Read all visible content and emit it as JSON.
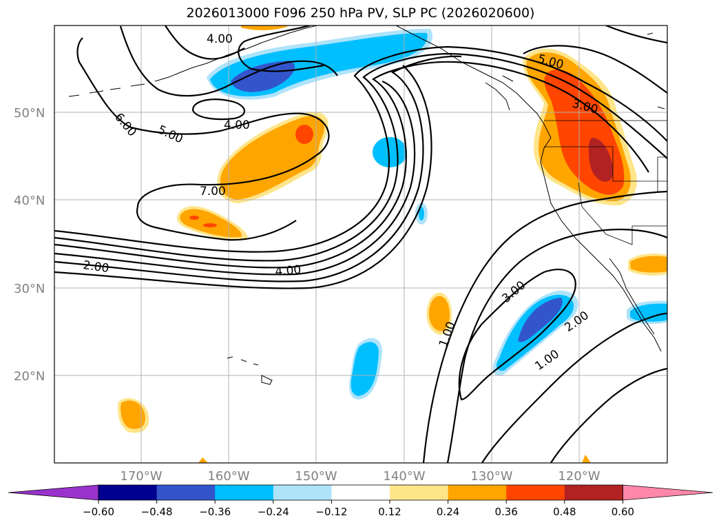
{
  "title": "2026013000 F096 250 hPa PV, SLP PC (2026020600)",
  "lat_labels": [
    "50°N",
    "40°N",
    "30°N",
    "20°N"
  ],
  "lon_labels": [
    "170°W",
    "160°W",
    "150°W",
    "140°W",
    "130°W",
    "120°W"
  ],
  "contour_labels": [
    "4.00",
    "4.00",
    "5.00",
    "6.00",
    "7.00",
    "2.00",
    "4.00",
    "5.00",
    "3.00",
    "3.00",
    "1.00",
    "2.00",
    "1.00"
  ],
  "colorbar": {
    "ticks": [
      "−0.60",
      "−0.48",
      "−0.36",
      "−0.24",
      "−0.12",
      "0.12",
      "0.24",
      "0.36",
      "0.48",
      "0.60"
    ],
    "colors": [
      "#9933cc",
      "#000090",
      "#3355cc",
      "#00bfff",
      "#aee3fa",
      "#ffffff",
      "#ffe58a",
      "#ffa500",
      "#ff4500",
      "#b22222",
      "#ff88aa"
    ]
  },
  "fills": {
    "neg_light": "#aee3fa",
    "neg_mid": "#00bfff",
    "neg_deep": "#3355cc",
    "pos_light": "#ffe58a",
    "pos_mid": "#ffa500",
    "pos_deep": "#ff4500",
    "pos_max": "#b22222"
  }
}
